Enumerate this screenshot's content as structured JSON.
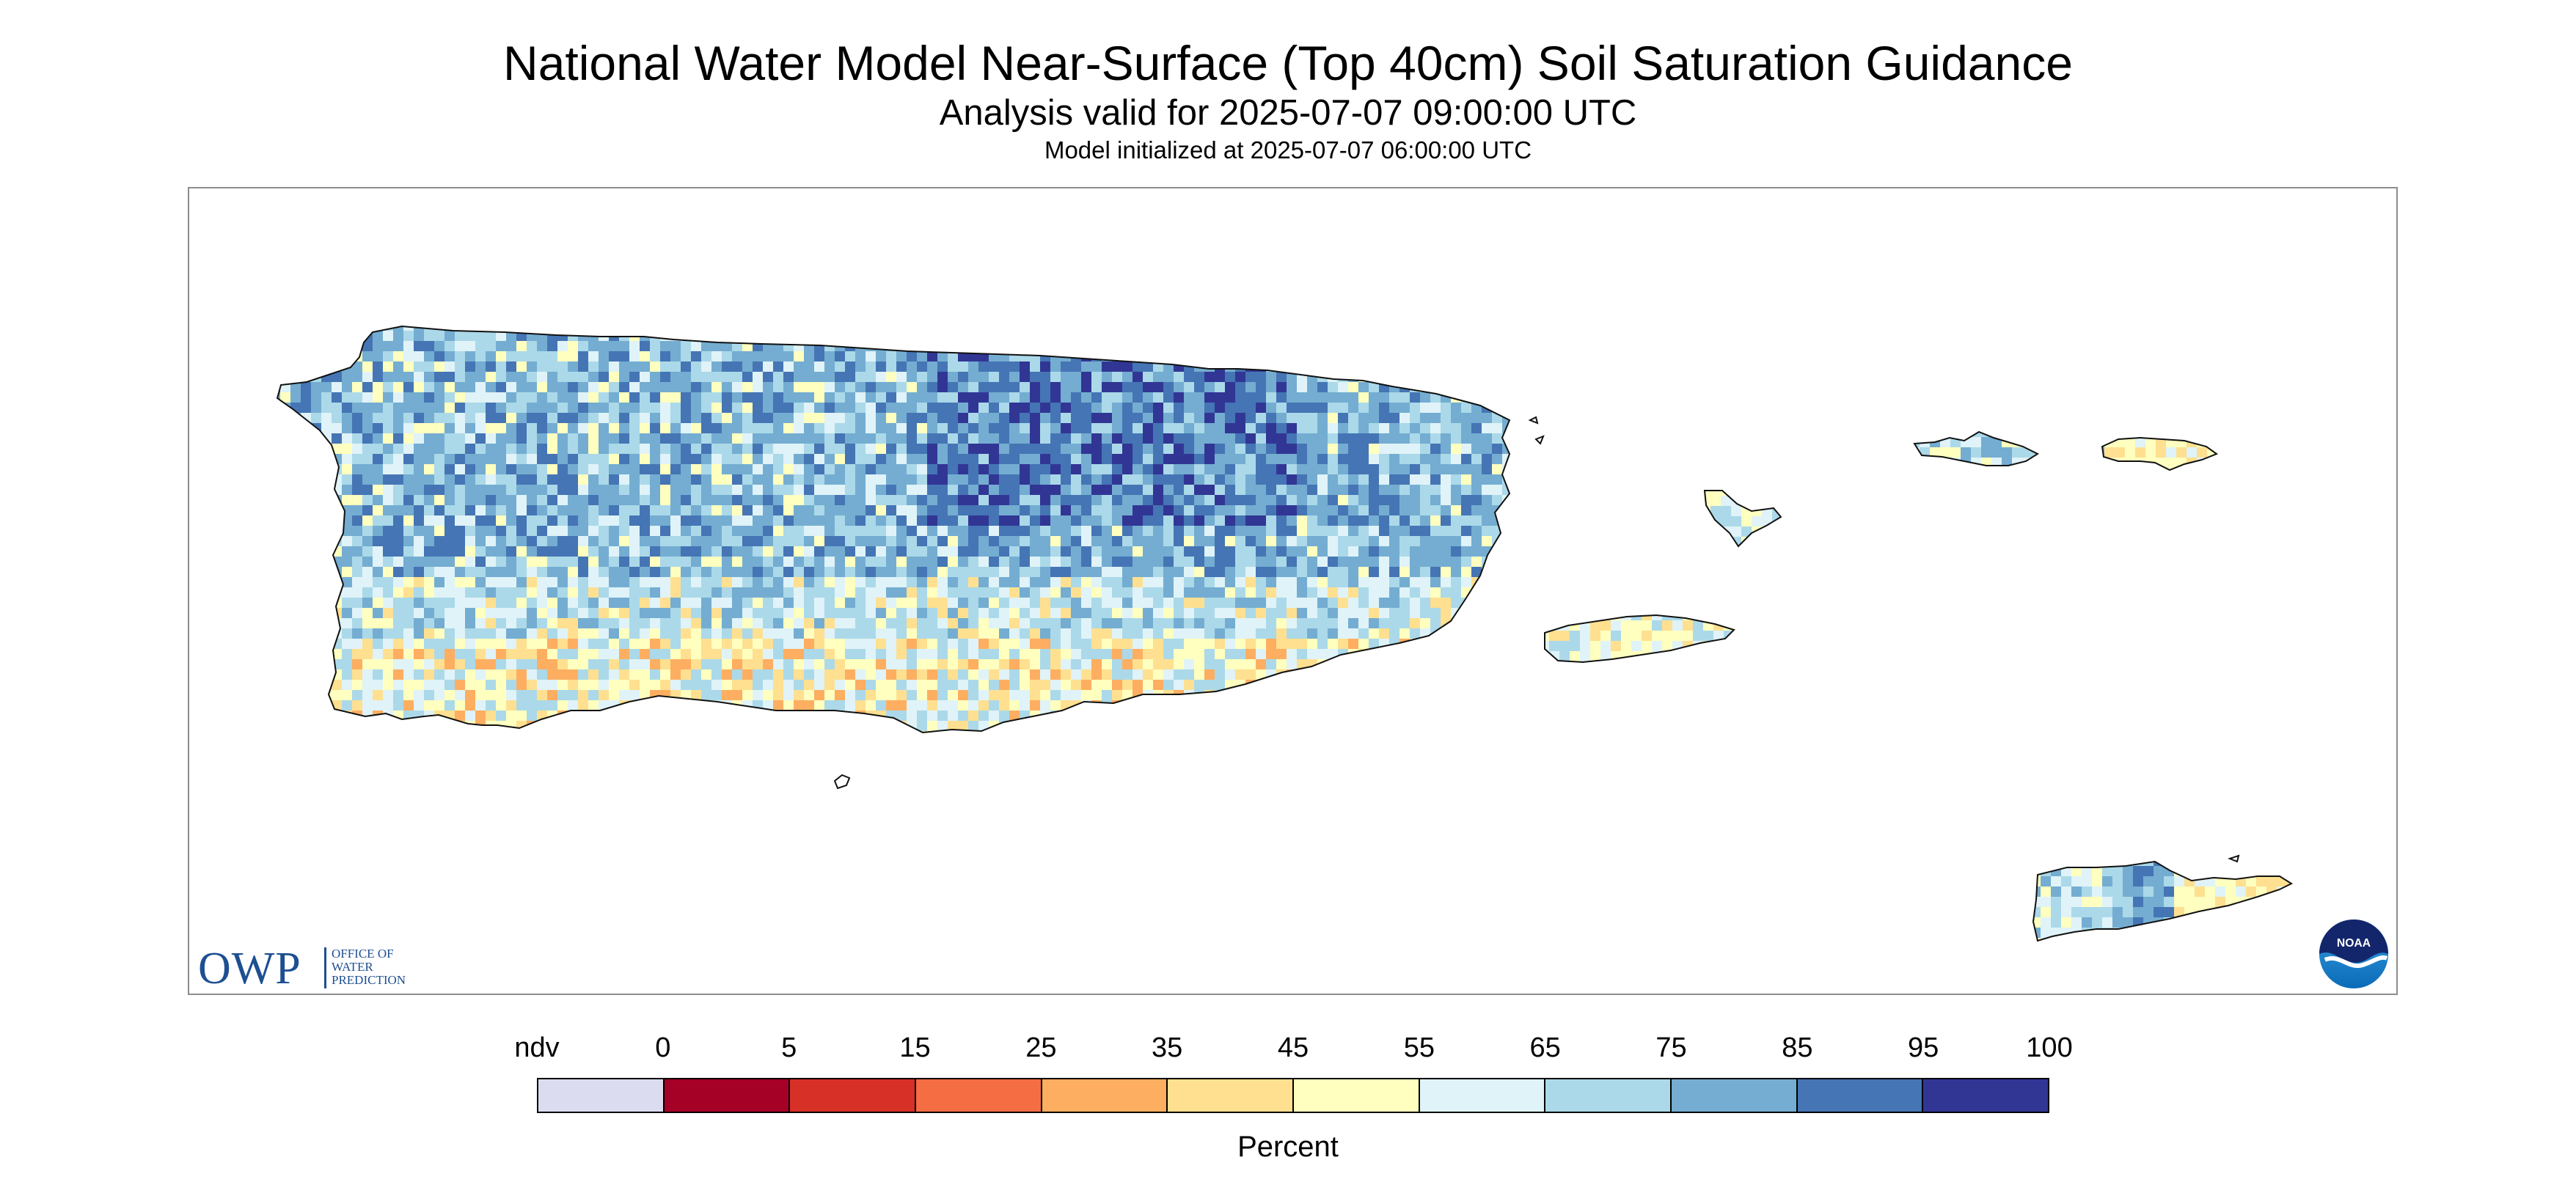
{
  "title": "National Water Model Near-Surface (Top 40cm) Soil Saturation Guidance",
  "subtitle": "Analysis valid for 2025-07-07 09:00:00 UTC",
  "initialized": "Model initialized at 2025-07-07 06:00:00 UTC",
  "logo": {
    "owp_letters": "OWP",
    "owp_sub": [
      "OFFICE OF",
      "WATER",
      "PREDICTION"
    ],
    "noaa_text": "NOAA"
  },
  "legend": {
    "title": "Percent",
    "labels": [
      "ndv",
      "0",
      "5",
      "15",
      "25",
      "35",
      "45",
      "55",
      "65",
      "75",
      "85",
      "95",
      "100"
    ],
    "colors": [
      "#dcdcf0",
      "#a50026",
      "#d73027",
      "#f46d43",
      "#fdae61",
      "#fee090",
      "#ffffbf",
      "#e0f3f8",
      "#abd9e9",
      "#74add1",
      "#4575b4",
      "#313695"
    ]
  }
}
